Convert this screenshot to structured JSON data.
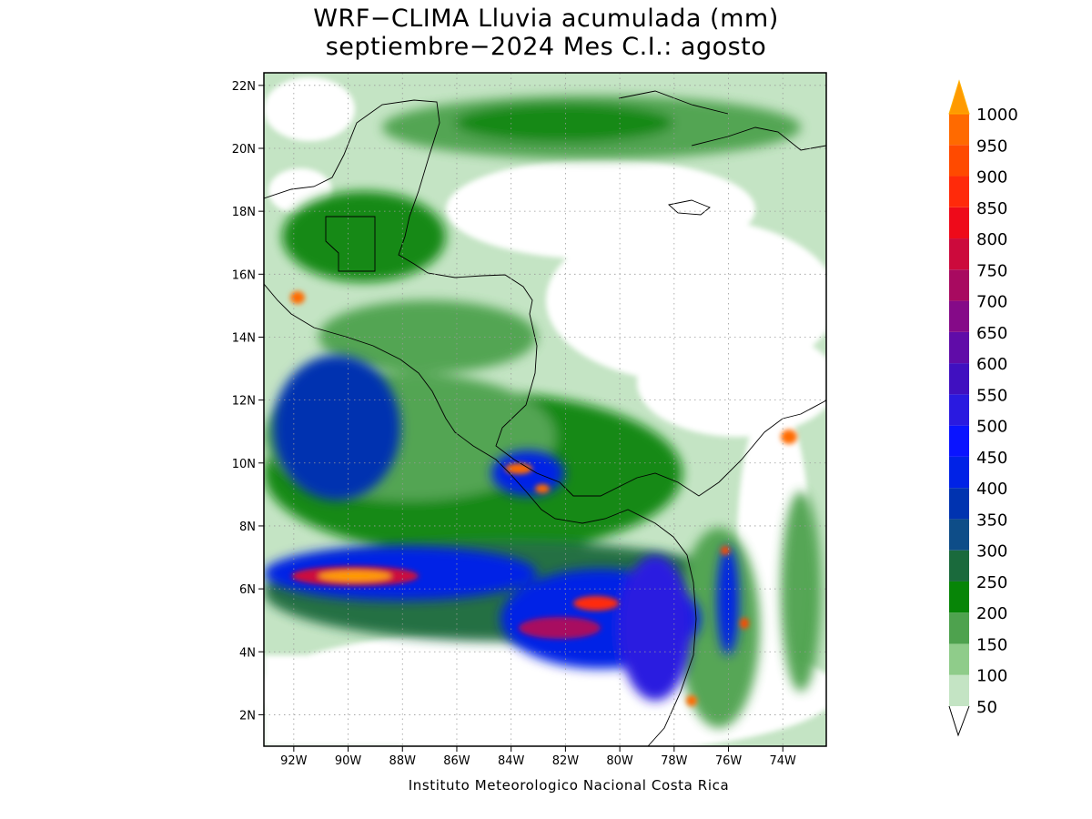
{
  "title": {
    "line1": "WRF−CLIMA Lluvia acumulada (mm)",
    "line2": "septiembre−2024 Mes C.I.: agosto"
  },
  "credit": "Instituto Meteorologico Nacional Costa Rica",
  "map": {
    "lon_range": [
      -93.1,
      -72.4
    ],
    "lat_range": [
      1.0,
      22.4
    ],
    "lon_ticks": [
      {
        "value": -92,
        "label": "92W"
      },
      {
        "value": -90,
        "label": "90W"
      },
      {
        "value": -88,
        "label": "88W"
      },
      {
        "value": -86,
        "label": "86W"
      },
      {
        "value": -84,
        "label": "84W"
      },
      {
        "value": -82,
        "label": "82W"
      },
      {
        "value": -80,
        "label": "80W"
      },
      {
        "value": -78,
        "label": "78W"
      },
      {
        "value": -76,
        "label": "76W"
      },
      {
        "value": -74,
        "label": "74W"
      }
    ],
    "lat_ticks": [
      {
        "value": 2,
        "label": "2N"
      },
      {
        "value": 4,
        "label": "4N"
      },
      {
        "value": 6,
        "label": "6N"
      },
      {
        "value": 8,
        "label": "8N"
      },
      {
        "value": 10,
        "label": "10N"
      },
      {
        "value": 12,
        "label": "12N"
      },
      {
        "value": 14,
        "label": "14N"
      },
      {
        "value": 16,
        "label": "16N"
      },
      {
        "value": 18,
        "label": "18N"
      },
      {
        "value": 20,
        "label": "20N"
      },
      {
        "value": 22,
        "label": "22N"
      }
    ],
    "grid": true
  },
  "legend": {
    "levels": [
      {
        "value": "50",
        "color": "#c4e4c4"
      },
      {
        "value": "100",
        "color": "#8fcc8a"
      },
      {
        "value": "150",
        "color": "#4ea24e"
      },
      {
        "value": "200",
        "color": "#078507"
      },
      {
        "value": "250",
        "color": "#1a6a3c"
      },
      {
        "value": "300",
        "color": "#0e4d88"
      },
      {
        "value": "350",
        "color": "#0033b0"
      },
      {
        "value": "400",
        "color": "#0022e6"
      },
      {
        "value": "450",
        "color": "#0a14ff"
      },
      {
        "value": "500",
        "color": "#2a1ae0"
      },
      {
        "value": "550",
        "color": "#4010c0"
      },
      {
        "value": "600",
        "color": "#600ca8"
      },
      {
        "value": "650",
        "color": "#850a88"
      },
      {
        "value": "700",
        "color": "#a80a60"
      },
      {
        "value": "750",
        "color": "#cc0a3c"
      },
      {
        "value": "800",
        "color": "#ee0a1a"
      },
      {
        "value": "850",
        "color": "#ff2a0a"
      },
      {
        "value": "900",
        "color": "#ff4a00"
      },
      {
        "value": "950",
        "color": "#ff6a00"
      },
      {
        "value": "1000",
        "color": "#ff9a00"
      }
    ],
    "over_color": "#ffb000"
  }
}
